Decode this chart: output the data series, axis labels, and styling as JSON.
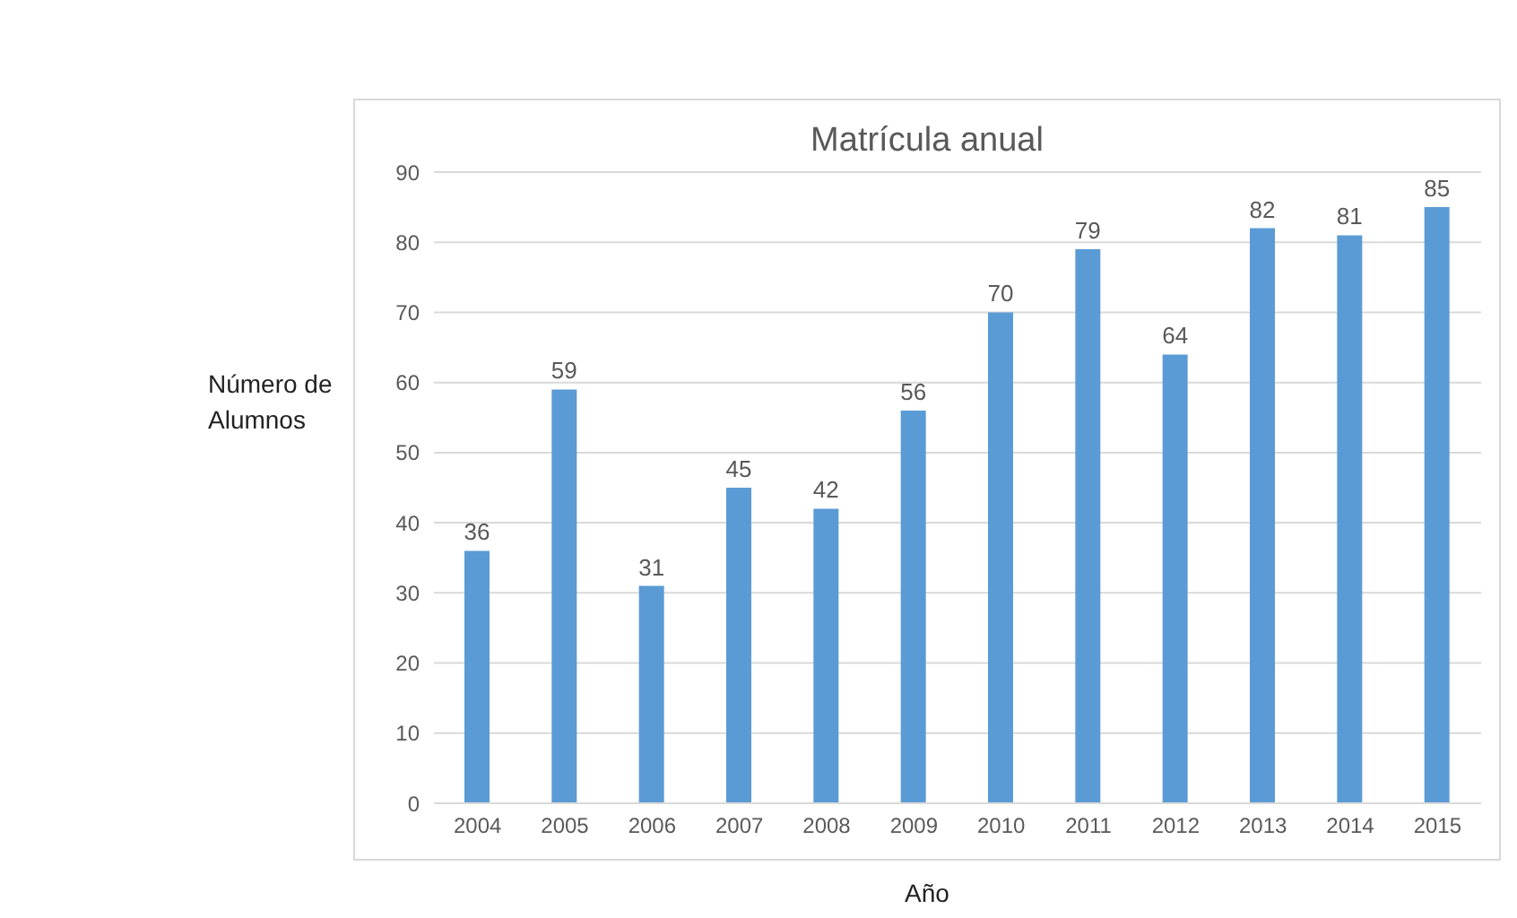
{
  "chart_data": {
    "type": "bar",
    "title": "Matrícula anual",
    "xlabel": "Año",
    "ylabel": "Número de Alumnos",
    "categories": [
      "2004",
      "2005",
      "2006",
      "2007",
      "2008",
      "2009",
      "2010",
      "2011",
      "2012",
      "2013",
      "2014",
      "2015"
    ],
    "values": [
      36,
      59,
      31,
      45,
      42,
      56,
      70,
      79,
      64,
      82,
      81,
      85
    ],
    "color": "#5b9bd5",
    "ylim": [
      0,
      90
    ],
    "yticks": [
      0,
      10,
      20,
      30,
      40,
      50,
      60,
      70,
      80,
      90
    ],
    "grid": "y",
    "data_labels": true
  }
}
